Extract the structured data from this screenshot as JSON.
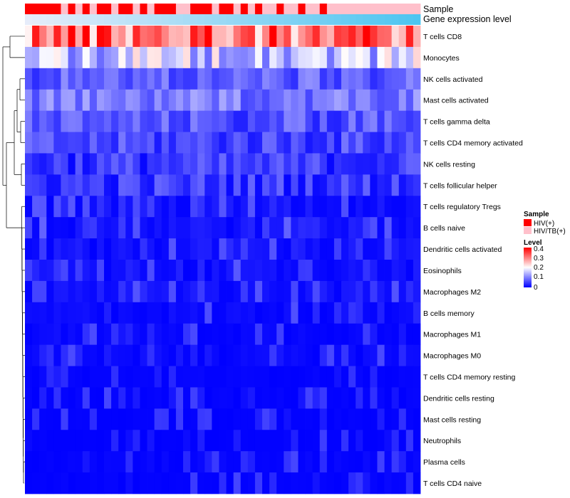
{
  "chart_data": {
    "type": "heatmap",
    "title": "",
    "annotations": {
      "sample_label": "Sample",
      "expression_label": "Gene expression level",
      "sample_groups": [
        "HIV(+)",
        "HIV(+)",
        "HIV(+)",
        "HIV(+)",
        "HIV(+)",
        "HIV/TB(+)",
        "HIV(+)",
        "HIV/TB(+)",
        "HIV(+)",
        "HIV/TB(+)",
        "HIV(+)",
        "HIV(+)",
        "HIV/TB(+)",
        "HIV(+)",
        "HIV(+)",
        "HIV/TB(+)",
        "HIV(+)",
        "HIV/TB(+)",
        "HIV(+)",
        "HIV(+)",
        "HIV(+)",
        "HIV/TB(+)",
        "HIV/TB(+)",
        "HIV(+)",
        "HIV(+)",
        "HIV(+)",
        "HIV/TB(+)",
        "HIV(+)",
        "HIV(+)",
        "HIV/TB(+)",
        "HIV(+)",
        "HIV/TB(+)",
        "HIV(+)",
        "HIV/TB(+)",
        "HIV/TB(+)",
        "HIV(+)",
        "HIV/TB(+)",
        "HIV/TB(+)",
        "HIV(+)",
        "HIV/TB(+)",
        "HIV/TB(+)",
        "HIV(+)",
        "HIV/TB(+)",
        "HIV/TB(+)",
        "HIV/TB(+)",
        "HIV/TB(+)",
        "HIV/TB(+)",
        "HIV/TB(+)",
        "HIV/TB(+)",
        "HIV/TB(+)",
        "HIV/TB(+)",
        "HIV/TB(+)",
        "HIV/TB(+)",
        "HIV/TB(+)",
        "HIV/TB(+)"
      ]
    },
    "rows": [
      "T cells CD8",
      "Monocytes",
      "NK cells activated",
      "Mast cells activated",
      "T cells gamma delta",
      "T cells CD4 memory activated",
      "NK cells resting",
      "T cells follicular helper",
      "T cells regulatory  Tregs",
      "B cells naive",
      "Dendritic cells activated",
      "Eosinophils",
      "Macrophages M2",
      "B cells memory",
      "Macrophages M1",
      "Macrophages M0",
      "T cells CD4 memory resting",
      "Dendritic cells resting",
      "Mast cells resting",
      "Neutrophils",
      "Plasma cells",
      "T cells CD4 naive"
    ],
    "row_means": [
      0.32,
      0.16,
      0.07,
      0.09,
      0.06,
      0.05,
      0.04,
      0.04,
      0.025,
      0.03,
      0.025,
      0.02,
      0.02,
      0.015,
      0.01,
      0.01,
      0.005,
      0.005,
      0.003,
      0.002,
      0.008,
      0.004
    ],
    "n_columns": 55,
    "value_range": [
      0,
      0.4
    ],
    "color_scale": [
      "#0000FF",
      "#FFFFFF",
      "#FF0000"
    ],
    "legend": {
      "sample_title": "Sample",
      "sample_entries": [
        {
          "label": "HIV(+)",
          "color": "#FF0000"
        },
        {
          "label": "HIV/TB(+)",
          "color": "#FFC0CB"
        }
      ],
      "level_title": "Level",
      "level_ticks": [
        "0.4",
        "0.3",
        "0.2",
        "0.1",
        "0"
      ],
      "placement": "right"
    }
  },
  "colors": {
    "hiv": "#FF0000",
    "hivtb": "#FFC0CB",
    "expr_start": "#E6ECFA",
    "expr_end": "#4DC5F0",
    "low": "#0000FF",
    "mid": "#FFFFFF",
    "high": "#FF0000"
  }
}
